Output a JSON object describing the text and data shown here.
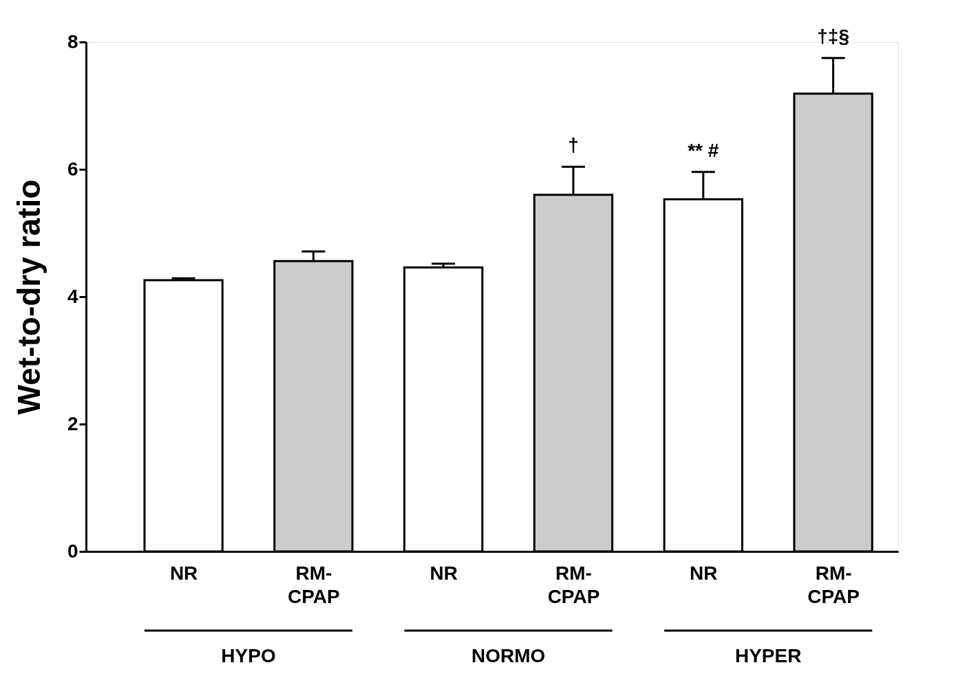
{
  "chart_data": {
    "type": "bar",
    "ylabel": "Wet-to-dry ratio",
    "categories": [
      "NR",
      "RM-CPAP",
      "NR",
      "RM-CPAP",
      "NR",
      "RM-CPAP"
    ],
    "values": [
      4.26,
      4.56,
      4.46,
      5.6,
      5.53,
      7.19
    ],
    "colors": [
      "#ffffff",
      "#cccccc",
      "#ffffff",
      "#cccccc",
      "#ffffff",
      "#cccccc"
    ],
    "errors": [
      [
        4.26,
        4.29
      ],
      [
        4.56,
        4.71
      ],
      [
        4.46,
        4.52
      ],
      [
        5.6,
        6.04
      ],
      [
        5.53,
        5.96
      ],
      [
        7.19,
        7.75
      ]
    ],
    "ylim": [
      0,
      8
    ],
    "yticks": [
      0,
      2,
      4,
      6,
      8
    ],
    "grid": false,
    "annotations": [
      "†",
      "** #",
      "†‡§",
      "HYPO",
      "NORMO",
      "HYPER"
    ]
  }
}
